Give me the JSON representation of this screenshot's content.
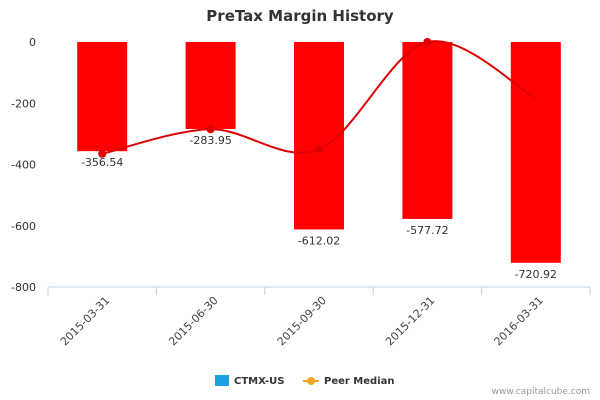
{
  "chart_data": {
    "type": "bar",
    "title": "PreTax Margin History",
    "categories": [
      "2015-03-31",
      "2015-06-30",
      "2015-09-30",
      "2015-12-31",
      "2016-03-31"
    ],
    "series": [
      {
        "name": "CTMX-US",
        "kind": "bar",
        "values": [
          -356.54,
          -283.95,
          -612.02,
          -577.72,
          -720.92
        ],
        "data_labels": [
          "-356.54",
          "-283.95",
          "-612.02",
          "-577.72",
          "-720.92"
        ],
        "bar_color": "#ff0000",
        "legend_color": "#1ba1e2"
      },
      {
        "name": "Peer Median",
        "kind": "line",
        "values": [
          -365,
          -285,
          -350,
          0,
          -185
        ],
        "line_color": "#dd0000",
        "legend_color": "#f5a623"
      }
    ],
    "yticks": [
      0,
      -200,
      -400,
      -600,
      -800
    ],
    "ytick_labels": [
      "0",
      "-200",
      "-400",
      "-600",
      "-800"
    ],
    "ylim": [
      -800,
      0
    ],
    "grid": false,
    "legend_position": "bottom-center",
    "credit": "www.capitalcube.com"
  }
}
